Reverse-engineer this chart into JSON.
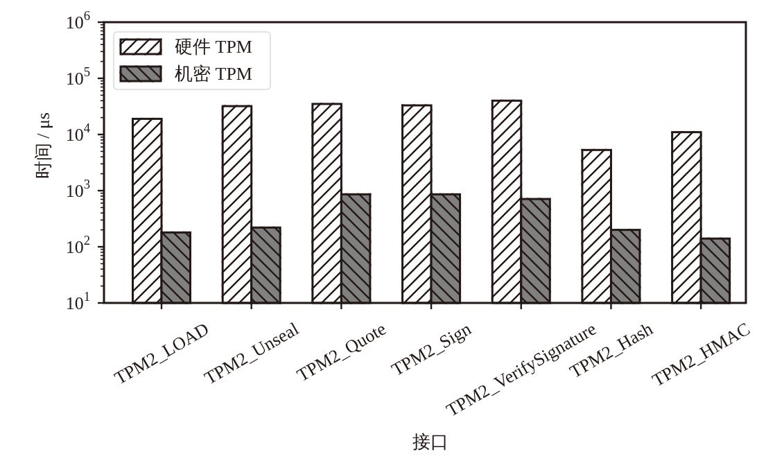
{
  "chart_data": {
    "type": "bar",
    "xlabel": "接口",
    "ylabel": "时间 / μs",
    "categories": [
      "TPM2_LOAD",
      "TPM2_Unseal",
      "TPM2_Quote",
      "TPM2_Sign",
      "TPM2_VerifySignature",
      "TPM2_Hash",
      "TPM2_HMAC"
    ],
    "series": [
      {
        "name": "硬件 TPM",
        "color": "#ffffff",
        "values": [
          19000,
          32000,
          35000,
          33000,
          40000,
          5300,
          11000
        ]
      },
      {
        "name": "机密 TPM",
        "color": "#808080",
        "values": [
          180,
          220,
          860,
          860,
          710,
          200,
          140
        ]
      }
    ],
    "log": true,
    "ylim": [
      10,
      1000000
    ],
    "yticks": [
      {
        "value": 10,
        "label": "10$^{1}$"
      },
      {
        "value": 100,
        "label": "10$^{2}$"
      },
      {
        "value": 1000,
        "label": "10$^{3}$"
      },
      {
        "value": 10000,
        "label": "10$^{4}$"
      },
      {
        "value": 100000,
        "label": "10$^{5}$"
      },
      {
        "value": 1000000,
        "label": "10$^{6}$"
      }
    ],
    "legend": "top left"
  }
}
